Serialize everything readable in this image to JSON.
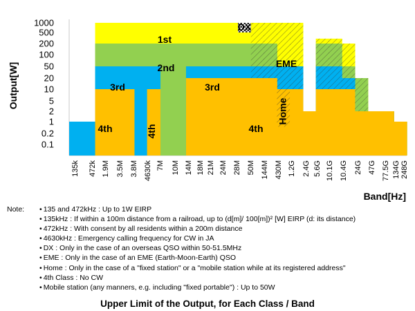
{
  "chart_data": {
    "type": "area",
    "title": "Upper Limit of the Output, for Each Class / Band",
    "ylabel": "Output[W]",
    "xlabel": "Band[Hz]",
    "y_scale": "log",
    "ylim": [
      0.05,
      1000
    ],
    "y_ticks": [
      "1000",
      "500",
      "200",
      "100",
      "50",
      "20",
      "10",
      "5",
      "2",
      "1",
      "0.2",
      "0.1"
    ],
    "y_tick_values": [
      1000,
      500,
      200,
      100,
      50,
      20,
      10,
      5,
      2,
      1,
      0.2,
      0.1
    ],
    "categories": [
      "135k",
      "472k",
      "1.9M",
      "3.5M",
      "3.8M",
      "4630k",
      "7M",
      "10M",
      "14M",
      "18M",
      "21M",
      "24M",
      "28M",
      "50M",
      "144M",
      "430M",
      "1.2G",
      "2.4G",
      "5.6G",
      "10.1G",
      "10.4G",
      "24G",
      "47G",
      "77.5G",
      "134G",
      "248G"
    ],
    "classes": [
      {
        "name": "1st",
        "color": "#ffff00",
        "limits_w": [
          1,
          1,
          1000,
          1000,
          1000,
          1000,
          1000,
          1000,
          1000,
          1000,
          1000,
          1000,
          1000,
          1000,
          1000,
          1000,
          1000,
          1000,
          2,
          300,
          300,
          200,
          20,
          2,
          2,
          1
        ]
      },
      {
        "name": "2nd",
        "color": "#92d050",
        "limits_w": [
          1,
          1,
          200,
          200,
          200,
          200,
          200,
          200,
          200,
          200,
          200,
          200,
          200,
          200,
          200,
          200,
          50,
          50,
          2,
          200,
          200,
          50,
          20,
          2,
          2,
          1
        ]
      },
      {
        "name": "3rd",
        "color": "#00b0f0",
        "limits_w": [
          1,
          1,
          50,
          50,
          50,
          50,
          50,
          null,
          null,
          50,
          50,
          50,
          50,
          50,
          50,
          50,
          50,
          50,
          2,
          50,
          50,
          20,
          2,
          2,
          2,
          1
        ]
      },
      {
        "name": "4th",
        "color": "#ffc000",
        "limits_w": [
          null,
          null,
          10,
          10,
          10,
          null,
          10,
          null,
          null,
          20,
          20,
          20,
          20,
          20,
          20,
          20,
          10,
          10,
          2,
          10,
          10,
          10,
          2,
          2,
          2,
          1
        ]
      }
    ],
    "special": [
      {
        "label": "DX",
        "band": "50M",
        "limit_w": 1000
      },
      {
        "label": "EME",
        "bands": [
          "144M",
          "430M",
          "1.2G",
          "2.4G",
          "5.6G",
          "10.1G",
          "10.4G",
          "24G",
          "47G"
        ]
      },
      {
        "label": "Home",
        "band": "1.2G"
      }
    ],
    "annotations": [
      "1st",
      "2nd",
      "3rd",
      "3rd",
      "4th",
      "4th",
      "4th",
      "DX",
      "EME",
      "Home"
    ]
  },
  "notes": {
    "prefix": "Note:",
    "items": [
      "135 and 472kHz : Up to 1W EIRP",
      "135kHz : If within a 100m distance from a railroad, up to (d[m]/ 100[m])² [W] EIRP (d: its distance)",
      "472kHz : With consent by all residents within a 200m distance",
      "4630kHz : Emergency calling frequency for CW in JA",
      "DX : Only in the case of an overseas QSO within 50-51.5MHz",
      "EME : Only in the case of an EME (Earth-Moon-Earth) QSO",
      "Home : Only in the case of a \"fixed station\" or a \"mobile station while at its registered address\"",
      "4th Class : No CW",
      "Mobile station (any manners, e.g. including \"fixed portable\") : Up to 50W"
    ]
  },
  "colors": {
    "first": "#ffff00",
    "second": "#92d050",
    "third": "#00b0f0",
    "fourth": "#ffc000",
    "frame": "#c8c8c8"
  }
}
